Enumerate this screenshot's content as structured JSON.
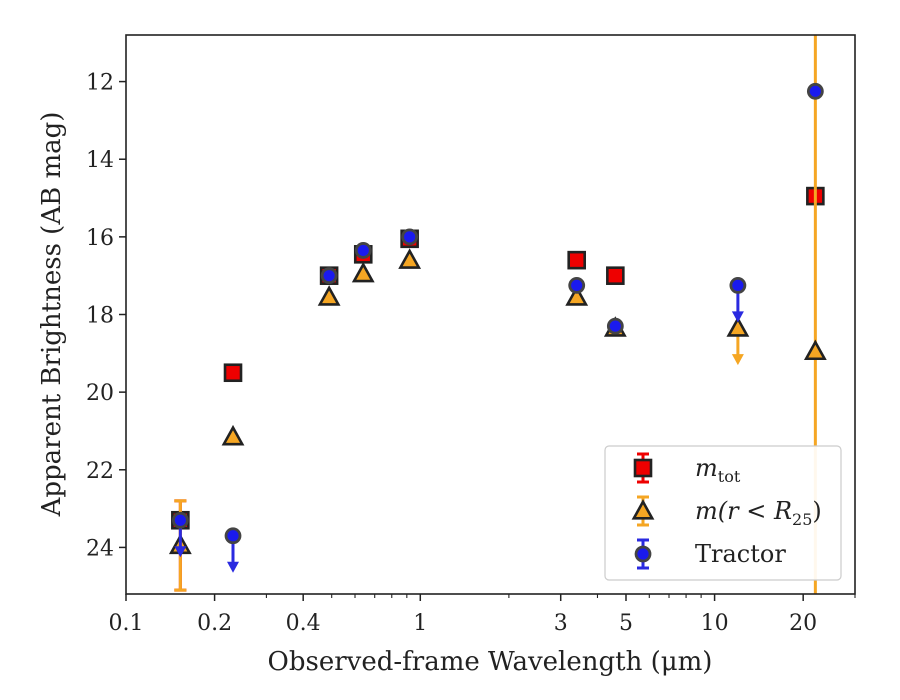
{
  "chart_data": {
    "type": "scatter",
    "xlabel": "Observed-frame Wavelength (μm)",
    "ylabel": "Apparent Brightness (AB mag)",
    "x_scale": "log",
    "y_inverted": true,
    "xlim": [
      0.1,
      30
    ],
    "ylim": [
      25.2,
      10.8
    ],
    "x_ticks": [
      {
        "value": 0.1,
        "label": "0.1"
      },
      {
        "value": 0.2,
        "label": "0.2"
      },
      {
        "value": 0.4,
        "label": "0.4"
      },
      {
        "value": 1,
        "label": "1"
      },
      {
        "value": 3,
        "label": "3"
      },
      {
        "value": 5,
        "label": "5"
      },
      {
        "value": 10,
        "label": "10"
      },
      {
        "value": 20,
        "label": "20"
      }
    ],
    "y_ticks": [
      {
        "value": 12,
        "label": "12"
      },
      {
        "value": 14,
        "label": "14"
      },
      {
        "value": 16,
        "label": "16"
      },
      {
        "value": 18,
        "label": "18"
      },
      {
        "value": 20,
        "label": "20"
      },
      {
        "value": 22,
        "label": "22"
      },
      {
        "value": 24,
        "label": "24"
      }
    ],
    "legend_position": "lower-right",
    "series": [
      {
        "name": "m_tot",
        "legend_main": "m",
        "legend_sub": "tot",
        "marker": "square",
        "color": "#ee0000",
        "edge": "#222222",
        "points": [
          {
            "x": 0.153,
            "y": 23.3,
            "err": [
              22.8,
              25.1
            ]
          },
          {
            "x": 0.231,
            "y": 19.5
          },
          {
            "x": 0.49,
            "y": 17.0
          },
          {
            "x": 0.64,
            "y": 16.45
          },
          {
            "x": 0.92,
            "y": 16.05
          },
          {
            "x": 3.4,
            "y": 16.6
          },
          {
            "x": 4.6,
            "y": 17.0
          },
          {
            "x": 22.0,
            "y": 14.95
          }
        ]
      },
      {
        "name": "m(r < R25)",
        "legend_main": "m(r < R",
        "legend_sub": "25",
        "legend_tail": ")",
        "marker": "triangle",
        "color": "#f5a623",
        "edge": "#222222",
        "points": [
          {
            "x": 0.153,
            "y": 23.95,
            "err": [
              22.8,
              25.1
            ]
          },
          {
            "x": 0.231,
            "y": 21.15
          },
          {
            "x": 0.49,
            "y": 17.55
          },
          {
            "x": 0.64,
            "y": 16.95
          },
          {
            "x": 0.92,
            "y": 16.6
          },
          {
            "x": 3.4,
            "y": 17.55
          },
          {
            "x": 4.6,
            "y": 18.35
          },
          {
            "x": 12.0,
            "y": 18.35,
            "upper_limit": true
          },
          {
            "x": 22.0,
            "y": 18.95,
            "err": [
              10.8,
              25.2
            ]
          }
        ]
      },
      {
        "name": "Tractor",
        "legend_main": "Tractor",
        "marker": "circle",
        "color": "#1a1aee",
        "edge": "#444444",
        "points": [
          {
            "x": 0.153,
            "y": 23.3,
            "upper_limit": true
          },
          {
            "x": 0.231,
            "y": 23.7,
            "upper_limit": true
          },
          {
            "x": 0.49,
            "y": 17.0
          },
          {
            "x": 0.64,
            "y": 16.35
          },
          {
            "x": 0.92,
            "y": 16.0
          },
          {
            "x": 3.4,
            "y": 17.25
          },
          {
            "x": 4.6,
            "y": 18.3
          },
          {
            "x": 12.0,
            "y": 17.25,
            "upper_limit": true
          },
          {
            "x": 22.0,
            "y": 12.25
          }
        ]
      }
    ]
  }
}
